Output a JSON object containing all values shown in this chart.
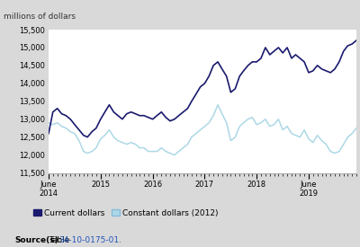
{
  "ylabel": "millions of dollars",
  "ylim": [
    11500,
    15500
  ],
  "yticks": [
    11500,
    12000,
    12500,
    13000,
    13500,
    14000,
    14500,
    15000,
    15500
  ],
  "bg_outer": "#d9d9d9",
  "bg_inner": "#ffffff",
  "line1_color": "#1a1a6e",
  "line2_color": "#add8e6",
  "line1_label": "Current dollars",
  "line2_label": "Constant dollars (2012)",
  "current_dollars": [
    12600,
    13200,
    13300,
    13150,
    13100,
    13000,
    12850,
    12700,
    12550,
    12500,
    12650,
    12750,
    13000,
    13200,
    13400,
    13200,
    13100,
    13000,
    13150,
    13200,
    13150,
    13100,
    13100,
    13050,
    13000,
    13100,
    13200,
    13050,
    12950,
    13000,
    13100,
    13200,
    13300,
    13500,
    13700,
    13900,
    14000,
    14200,
    14500,
    14600,
    14400,
    14200,
    13750,
    13850,
    14200,
    14350,
    14500,
    14600,
    14600,
    14700,
    15000,
    14800,
    14900,
    15000,
    14850,
    15000,
    14700,
    14800,
    14700,
    14600,
    14300,
    14350,
    14500,
    14400,
    14350,
    14300,
    14400,
    14600,
    14900,
    15050,
    15100,
    15200
  ],
  "constant_dollars": [
    12900,
    12850,
    12900,
    12800,
    12750,
    12650,
    12600,
    12400,
    12100,
    12050,
    12100,
    12200,
    12450,
    12550,
    12700,
    12500,
    12400,
    12350,
    12300,
    12350,
    12300,
    12200,
    12200,
    12100,
    12100,
    12100,
    12200,
    12100,
    12050,
    12000,
    12100,
    12200,
    12300,
    12500,
    12600,
    12700,
    12800,
    12900,
    13100,
    13400,
    13150,
    12900,
    12400,
    12500,
    12800,
    12900,
    13000,
    13050,
    12850,
    12900,
    13000,
    12800,
    12850,
    13000,
    12700,
    12800,
    12600,
    12550,
    12500,
    12700,
    12450,
    12350,
    12550,
    12400,
    12300,
    12100,
    12050,
    12100,
    12300,
    12500,
    12600,
    12750
  ],
  "n_months": 72,
  "start_year": 2014,
  "start_month": 6,
  "xtick_years": [
    2014,
    2015,
    2016,
    2017,
    2018,
    2019
  ],
  "xtick_labels": [
    "June\n2014",
    "2015",
    "2016",
    "2017",
    "2018",
    "June\n2019"
  ]
}
